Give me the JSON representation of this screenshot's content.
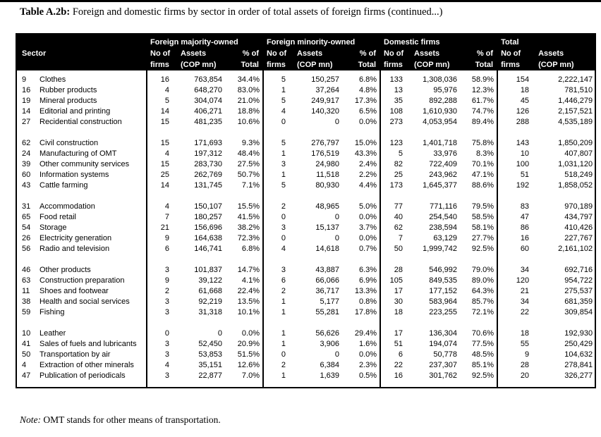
{
  "page": {
    "title_label": "Table A.2b:",
    "title_text": " Foreign and domestic firms by sector in order of total assets of foreign firms (continued...)",
    "note_label": "Note:",
    "note_text": " OMT stands for other means of transportation."
  },
  "table": {
    "sector_header": "Sector",
    "groups": [
      {
        "label": "Foreign majority-owned",
        "sub": [
          [
            "No of",
            "firms"
          ],
          [
            "Assets",
            "(COP mn)"
          ],
          [
            "% of",
            "Total"
          ]
        ]
      },
      {
        "label": "Foreign minority-owned",
        "sub": [
          [
            "No of",
            "firms"
          ],
          [
            "Assets",
            "(COP mn)"
          ],
          [
            "% of",
            "Total"
          ]
        ]
      },
      {
        "label": "Domestic firms",
        "sub": [
          [
            "No of",
            "firms"
          ],
          [
            "Assets",
            "(COP mn)"
          ],
          [
            "% of",
            "Total"
          ]
        ]
      },
      {
        "label": "Total",
        "sub": [
          [
            "No of",
            "firms"
          ],
          [
            "Assets",
            "(COP mn)"
          ]
        ]
      }
    ],
    "row_groups": [
      [
        [
          "9",
          "Clothes",
          "16",
          "763,854",
          "34.4%",
          "5",
          "150,257",
          "6.8%",
          "133",
          "1,308,036",
          "58.9%",
          "154",
          "2,222,147"
        ],
        [
          "16",
          "Rubber products",
          "4",
          "648,270",
          "83.0%",
          "1",
          "37,264",
          "4.8%",
          "13",
          "95,976",
          "12.3%",
          "18",
          "781,510"
        ],
        [
          "19",
          "Mineral products",
          "5",
          "304,074",
          "21.0%",
          "5",
          "249,917",
          "17.3%",
          "35",
          "892,288",
          "61.7%",
          "45",
          "1,446,279"
        ],
        [
          "14",
          "Editorial and printing",
          "14",
          "406,271",
          "18.8%",
          "4",
          "140,320",
          "6.5%",
          "108",
          "1,610,930",
          "74.7%",
          "126",
          "2,157,521"
        ],
        [
          "27",
          "Recidential construction",
          "15",
          "481,235",
          "10.6%",
          "0",
          "0",
          "0.0%",
          "273",
          "4,053,954",
          "89.4%",
          "288",
          "4,535,189"
        ]
      ],
      [
        [
          "62",
          "Civil construction",
          "15",
          "171,693",
          "9.3%",
          "5",
          "276,797",
          "15.0%",
          "123",
          "1,401,718",
          "75.8%",
          "143",
          "1,850,209"
        ],
        [
          "24",
          "Manufacturing of OMT",
          "4",
          "197,312",
          "48.4%",
          "1",
          "176,519",
          "43.3%",
          "5",
          "33,976",
          "8.3%",
          "10",
          "407,807"
        ],
        [
          "39",
          "Other community services",
          "15",
          "283,730",
          "27.5%",
          "3",
          "24,980",
          "2.4%",
          "82",
          "722,409",
          "70.1%",
          "100",
          "1,031,120"
        ],
        [
          "60",
          "Information systems",
          "25",
          "262,769",
          "50.7%",
          "1",
          "11,518",
          "2.2%",
          "25",
          "243,962",
          "47.1%",
          "51",
          "518,249"
        ],
        [
          "43",
          "Cattle farming",
          "14",
          "131,745",
          "7.1%",
          "5",
          "80,930",
          "4.4%",
          "173",
          "1,645,377",
          "88.6%",
          "192",
          "1,858,052"
        ]
      ],
      [
        [
          "31",
          "Accommodation",
          "4",
          "150,107",
          "15.5%",
          "2",
          "48,965",
          "5.0%",
          "77",
          "771,116",
          "79.5%",
          "83",
          "970,189"
        ],
        [
          "65",
          "Food retail",
          "7",
          "180,257",
          "41.5%",
          "0",
          "0",
          "0.0%",
          "40",
          "254,540",
          "58.5%",
          "47",
          "434,797"
        ],
        [
          "54",
          "Storage",
          "21",
          "156,696",
          "38.2%",
          "3",
          "15,137",
          "3.7%",
          "62",
          "238,594",
          "58.1%",
          "86",
          "410,426"
        ],
        [
          "26",
          "Electricity generation",
          "9",
          "164,638",
          "72.3%",
          "0",
          "0",
          "0.0%",
          "7",
          "63,129",
          "27.7%",
          "16",
          "227,767"
        ],
        [
          "56",
          "Radio and television",
          "6",
          "146,741",
          "6.8%",
          "4",
          "14,618",
          "0.7%",
          "50",
          "1,999,742",
          "92.5%",
          "60",
          "2,161,102"
        ]
      ],
      [
        [
          "46",
          "Other products",
          "3",
          "101,837",
          "14.7%",
          "3",
          "43,887",
          "6.3%",
          "28",
          "546,992",
          "79.0%",
          "34",
          "692,716"
        ],
        [
          "63",
          "Construction preparation",
          "9",
          "39,122",
          "4.1%",
          "6",
          "66,066",
          "6.9%",
          "105",
          "849,535",
          "89.0%",
          "120",
          "954,722"
        ],
        [
          "11",
          "Shoes and footwear",
          "2",
          "61,668",
          "22.4%",
          "2",
          "36,717",
          "13.3%",
          "17",
          "177,152",
          "64.3%",
          "21",
          "275,537"
        ],
        [
          "38",
          "Health and social services",
          "3",
          "92,219",
          "13.5%",
          "1",
          "5,177",
          "0.8%",
          "30",
          "583,964",
          "85.7%",
          "34",
          "681,359"
        ],
        [
          "59",
          "Fishing",
          "3",
          "31,318",
          "10.1%",
          "1",
          "55,281",
          "17.8%",
          "18",
          "223,255",
          "72.1%",
          "22",
          "309,854"
        ]
      ],
      [
        [
          "10",
          "Leather",
          "0",
          "0",
          "0.0%",
          "1",
          "56,626",
          "29.4%",
          "17",
          "136,304",
          "70.6%",
          "18",
          "192,930"
        ],
        [
          "41",
          "Sales of fuels and lubricants",
          "3",
          "52,450",
          "20.9%",
          "1",
          "3,906",
          "1.6%",
          "51",
          "194,074",
          "77.5%",
          "55",
          "250,429"
        ],
        [
          "50",
          "Transportation by air",
          "3",
          "53,853",
          "51.5%",
          "0",
          "0",
          "0.0%",
          "6",
          "50,778",
          "48.5%",
          "9",
          "104,632"
        ],
        [
          "4",
          "Extraction of other minerals",
          "4",
          "35,151",
          "12.6%",
          "2",
          "6,384",
          "2.3%",
          "22",
          "237,307",
          "85.1%",
          "28",
          "278,841"
        ],
        [
          "47",
          "Publication of periodicals",
          "3",
          "22,877",
          "7.0%",
          "1",
          "1,639",
          "0.5%",
          "16",
          "301,762",
          "92.5%",
          "20",
          "326,277"
        ]
      ]
    ]
  }
}
